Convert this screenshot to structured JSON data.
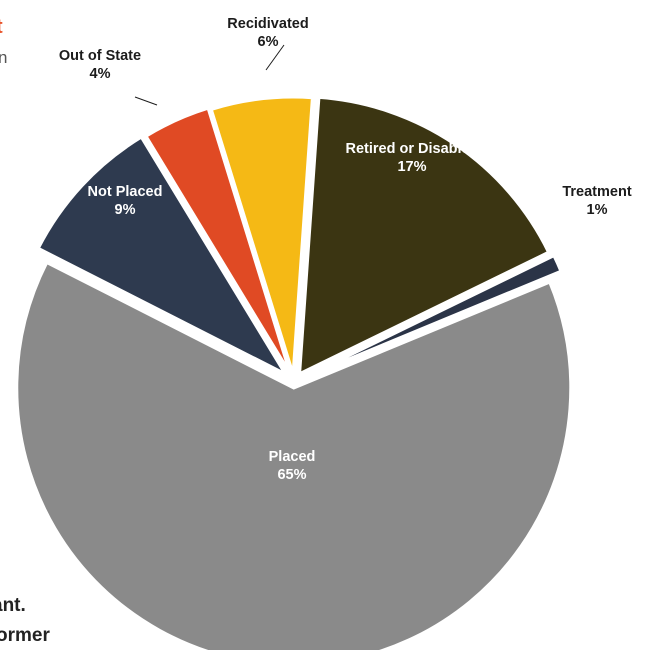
{
  "page_fragments": {
    "top_orange": "t",
    "top_gray": "n",
    "bottom_line1": "ant.",
    "bottom_line2": "ormer"
  },
  "colors": {
    "background": "#ffffff",
    "retired_or_disabled": "#3b3512",
    "treatment": "#2b3447",
    "placed": "#8a8a8a",
    "not_placed": "#2e3a4f",
    "out_of_state": "#e04a24",
    "recidivated": "#f5b915",
    "label_light": "#ffffff",
    "label_dark": "#1c1c1c"
  },
  "chart_data": {
    "type": "pie",
    "title": "",
    "slices": [
      {
        "label": "Retired or Disabled",
        "percent_text": "17%",
        "value": 17,
        "color": "#3b3512",
        "label_position": "inside",
        "label_color": "#ffffff"
      },
      {
        "label": "Treatment",
        "percent_text": "1%",
        "value": 1,
        "color": "#2b3447",
        "label_position": "outside",
        "label_color": "#1c1c1c"
      },
      {
        "label": "Placed",
        "percent_text": "65%",
        "value": 65,
        "color": "#8a8a8a",
        "label_position": "inside",
        "label_color": "#ffffff"
      },
      {
        "label": "Not Placed",
        "percent_text": "9%",
        "value": 9,
        "color": "#2e3a4f",
        "label_position": "inside",
        "label_color": "#ffffff"
      },
      {
        "label": "Out of State",
        "percent_text": "4%",
        "value": 4,
        "color": "#e04a24",
        "label_position": "outside",
        "label_color": "#1c1c1c"
      },
      {
        "label": "Recidivated",
        "percent_text": "6%",
        "value": 6,
        "color": "#f5b915",
        "label_position": "outside",
        "label_color": "#1c1c1c"
      }
    ]
  }
}
